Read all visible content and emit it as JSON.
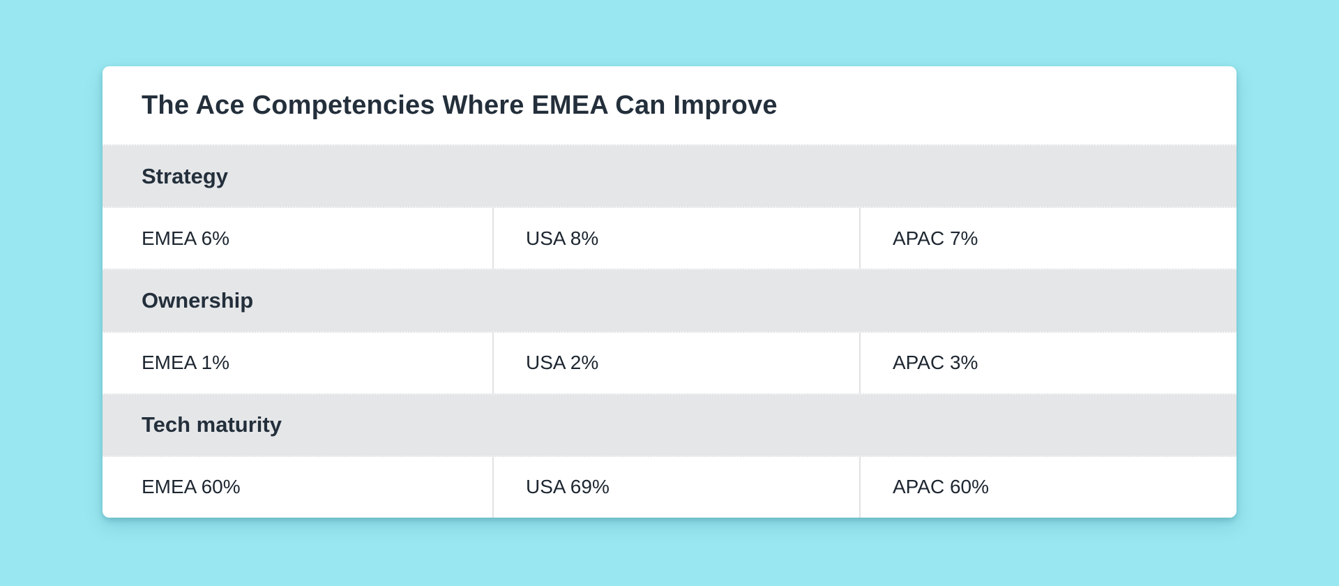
{
  "page": {
    "background_color": "#99E7F0"
  },
  "card": {
    "background_color": "#FFFFFF",
    "section_band_color": "#E5E6E8",
    "divider_color": "#E1E2E3",
    "title": "The Ace Competencies Where EMEA Can Improve",
    "title_color": "#232F3B",
    "sections": [
      {
        "label": "Strategy",
        "cells": [
          "EMEA 6%",
          "USA 8%",
          "APAC 7%"
        ]
      },
      {
        "label": "Ownership",
        "cells": [
          "EMEA 1%",
          "USA 2%",
          "APAC 3%"
        ]
      },
      {
        "label": "Tech maturity",
        "cells": [
          "EMEA 60%",
          "USA 69%",
          "APAC 60%"
        ]
      }
    ]
  },
  "chart_data": {
    "type": "table",
    "title": "The Ace Competencies Where EMEA Can Improve",
    "categories": [
      "Strategy",
      "Ownership",
      "Tech maturity"
    ],
    "series": [
      {
        "name": "EMEA",
        "values": [
          6,
          1,
          60
        ]
      },
      {
        "name": "USA",
        "values": [
          8,
          2,
          69
        ]
      },
      {
        "name": "APAC",
        "values": [
          7,
          3,
          60
        ]
      }
    ],
    "unit": "%",
    "layout": "sectioned table: one gray header band per category, one white row of three region cells beneath it"
  }
}
